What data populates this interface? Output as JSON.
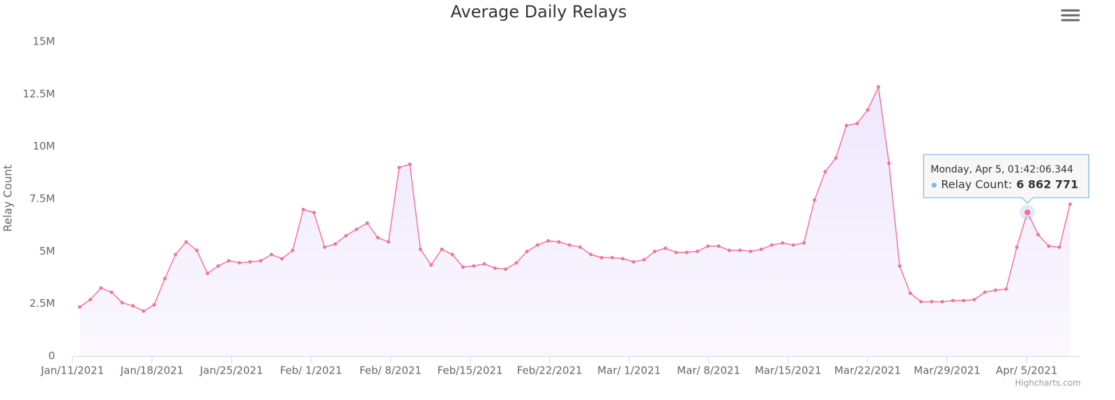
{
  "chart_data": {
    "type": "area",
    "title": "Average Daily Relays",
    "y_label": "Relay Count",
    "credits": "Highcharts.com",
    "color": "#f47399",
    "fill": "#ece4fd",
    "grid": false,
    "xlim": [
      "2021-01-11",
      "2021-04-09T17:00"
    ],
    "xticks": [
      {
        "value": "2021-01-11",
        "label": "Jan/11/2021"
      },
      {
        "value": "2021-01-18",
        "label": "Jan/18/2021"
      },
      {
        "value": "2021-01-25",
        "label": "Jan/25/2021"
      },
      {
        "value": "2021-02-01",
        "label": "Feb/ 1/2021"
      },
      {
        "value": "2021-02-08",
        "label": "Feb/ 8/2021"
      },
      {
        "value": "2021-02-15",
        "label": "Feb/15/2021"
      },
      {
        "value": "2021-02-22",
        "label": "Feb/22/2021"
      },
      {
        "value": "2021-03-01",
        "label": "Mar/ 1/2021"
      },
      {
        "value": "2021-03-08",
        "label": "Mar/ 8/2021"
      },
      {
        "value": "2021-03-15",
        "label": "Mar/15/2021"
      },
      {
        "value": "2021-03-22",
        "label": "Mar/22/2021"
      },
      {
        "value": "2021-03-29",
        "label": "Mar/29/2021"
      },
      {
        "value": "2021-04-05",
        "label": "Apr/ 5/2021"
      }
    ],
    "ylim": [
      0,
      15000000
    ],
    "yticks": [
      0,
      {
        "value": 2500000,
        "label": "2.5M"
      },
      {
        "value": 5000000,
        "label": "5M"
      },
      {
        "value": 7500000,
        "label": "7.5M"
      },
      {
        "value": 10000000,
        "label": "10M"
      },
      {
        "value": 12500000,
        "label": "12.5M"
      },
      {
        "value": 15000000,
        "label": "15M"
      }
    ],
    "x": [
      "2021-01-11T15:12",
      "2021-01-12T13:42",
      "2021-01-13T12:12",
      "2021-01-14T10:42",
      "2021-01-15T09:12",
      "2021-01-16T07:42",
      "2021-01-17T06:12",
      "2021-01-18T04:42",
      "2021-01-19T03:12",
      "2021-01-20T01:42",
      "2021-01-21T00:12",
      "2021-01-21T22:42",
      "2021-01-22T21:12",
      "2021-01-23T19:42",
      "2021-01-24T18:12",
      "2021-01-25T16:42",
      "2021-01-26T15:12",
      "2021-01-27T13:42",
      "2021-01-28T12:12",
      "2021-01-29T10:42",
      "2021-01-30T09:12",
      "2021-01-31T07:42",
      "2021-02-01T06:12",
      "2021-02-02T04:42",
      "2021-02-03T03:12",
      "2021-02-04T01:42",
      "2021-02-05T00:12",
      "2021-02-05T22:42",
      "2021-02-06T21:12",
      "2021-02-07T19:42",
      "2021-02-08T18:12",
      "2021-02-09T16:42",
      "2021-02-10T15:12",
      "2021-02-11T13:42",
      "2021-02-12T12:12",
      "2021-02-13T10:42",
      "2021-02-14T09:12",
      "2021-02-15T07:42",
      "2021-02-16T06:12",
      "2021-02-17T04:42",
      "2021-02-18T03:12",
      "2021-02-19T01:42",
      "2021-02-20T00:12",
      "2021-02-20T22:42",
      "2021-02-21T21:12",
      "2021-02-22T19:42",
      "2021-02-23T18:12",
      "2021-02-24T16:42",
      "2021-02-25T15:12",
      "2021-02-26T13:42",
      "2021-02-27T12:12",
      "2021-02-28T10:42",
      "2021-03-01T09:12",
      "2021-03-02T07:42",
      "2021-03-03T06:12",
      "2021-03-04T04:42",
      "2021-03-05T03:12",
      "2021-03-06T01:42",
      "2021-03-07T00:12",
      "2021-03-07T22:42",
      "2021-03-08T21:12",
      "2021-03-09T19:42",
      "2021-03-10T18:12",
      "2021-03-11T16:42",
      "2021-03-12T15:12",
      "2021-03-13T13:42",
      "2021-03-14T12:12",
      "2021-03-15T10:42",
      "2021-03-16T09:12",
      "2021-03-17T07:42",
      "2021-03-18T06:12",
      "2021-03-19T04:42",
      "2021-03-20T03:12",
      "2021-03-21T01:42",
      "2021-03-22T00:12",
      "2021-03-22T22:42",
      "2021-03-23T21:12",
      "2021-03-24T19:42",
      "2021-03-25T18:12",
      "2021-03-26T16:42",
      "2021-03-27T15:12",
      "2021-03-28T13:42",
      "2021-03-29T12:12",
      "2021-03-30T10:42",
      "2021-03-31T09:12",
      "2021-04-01T07:42",
      "2021-04-02T06:12",
      "2021-04-03T04:42",
      "2021-04-04T03:12",
      "2021-04-05T01:42",
      "2021-04-06T00:12",
      "2021-04-06T22:42",
      "2021-04-07T21:12",
      "2021-04-08T19:42"
    ],
    "values": [
      2350000,
      2700000,
      3250000,
      3050000,
      2550000,
      2400000,
      2150000,
      2450000,
      3700000,
      4850000,
      5450000,
      5050000,
      3950000,
      4300000,
      4550000,
      4450000,
      4500000,
      4550000,
      4850000,
      4650000,
      5050000,
      7000000,
      6850000,
      5200000,
      5350000,
      5750000,
      6050000,
      6350000,
      5650000,
      5450000,
      9000000,
      9150000,
      5100000,
      4350000,
      5100000,
      4850000,
      4250000,
      4300000,
      4400000,
      4200000,
      4150000,
      4450000,
      5000000,
      5300000,
      5500000,
      5450000,
      5300000,
      5200000,
      4850000,
      4700000,
      4700000,
      4650000,
      4500000,
      4600000,
      5000000,
      5150000,
      4950000,
      4950000,
      5000000,
      5250000,
      5250000,
      5050000,
      5050000,
      5000000,
      5100000,
      5300000,
      5400000,
      5300000,
      5400000,
      7450000,
      8800000,
      9450000,
      11000000,
      11100000,
      11750000,
      12850000,
      9200000,
      4300000,
      3000000,
      2600000,
      2600000,
      2600000,
      2650000,
      2650000,
      2700000,
      3050000,
      3150000,
      3200000,
      5200000,
      6862771,
      5800000,
      5250000,
      5200000,
      7250000
    ],
    "tooltip": {
      "date": "Monday, Apr 5, 01:42:06.344",
      "label": "Relay Count:",
      "value_label": "6 862 771"
    }
  }
}
